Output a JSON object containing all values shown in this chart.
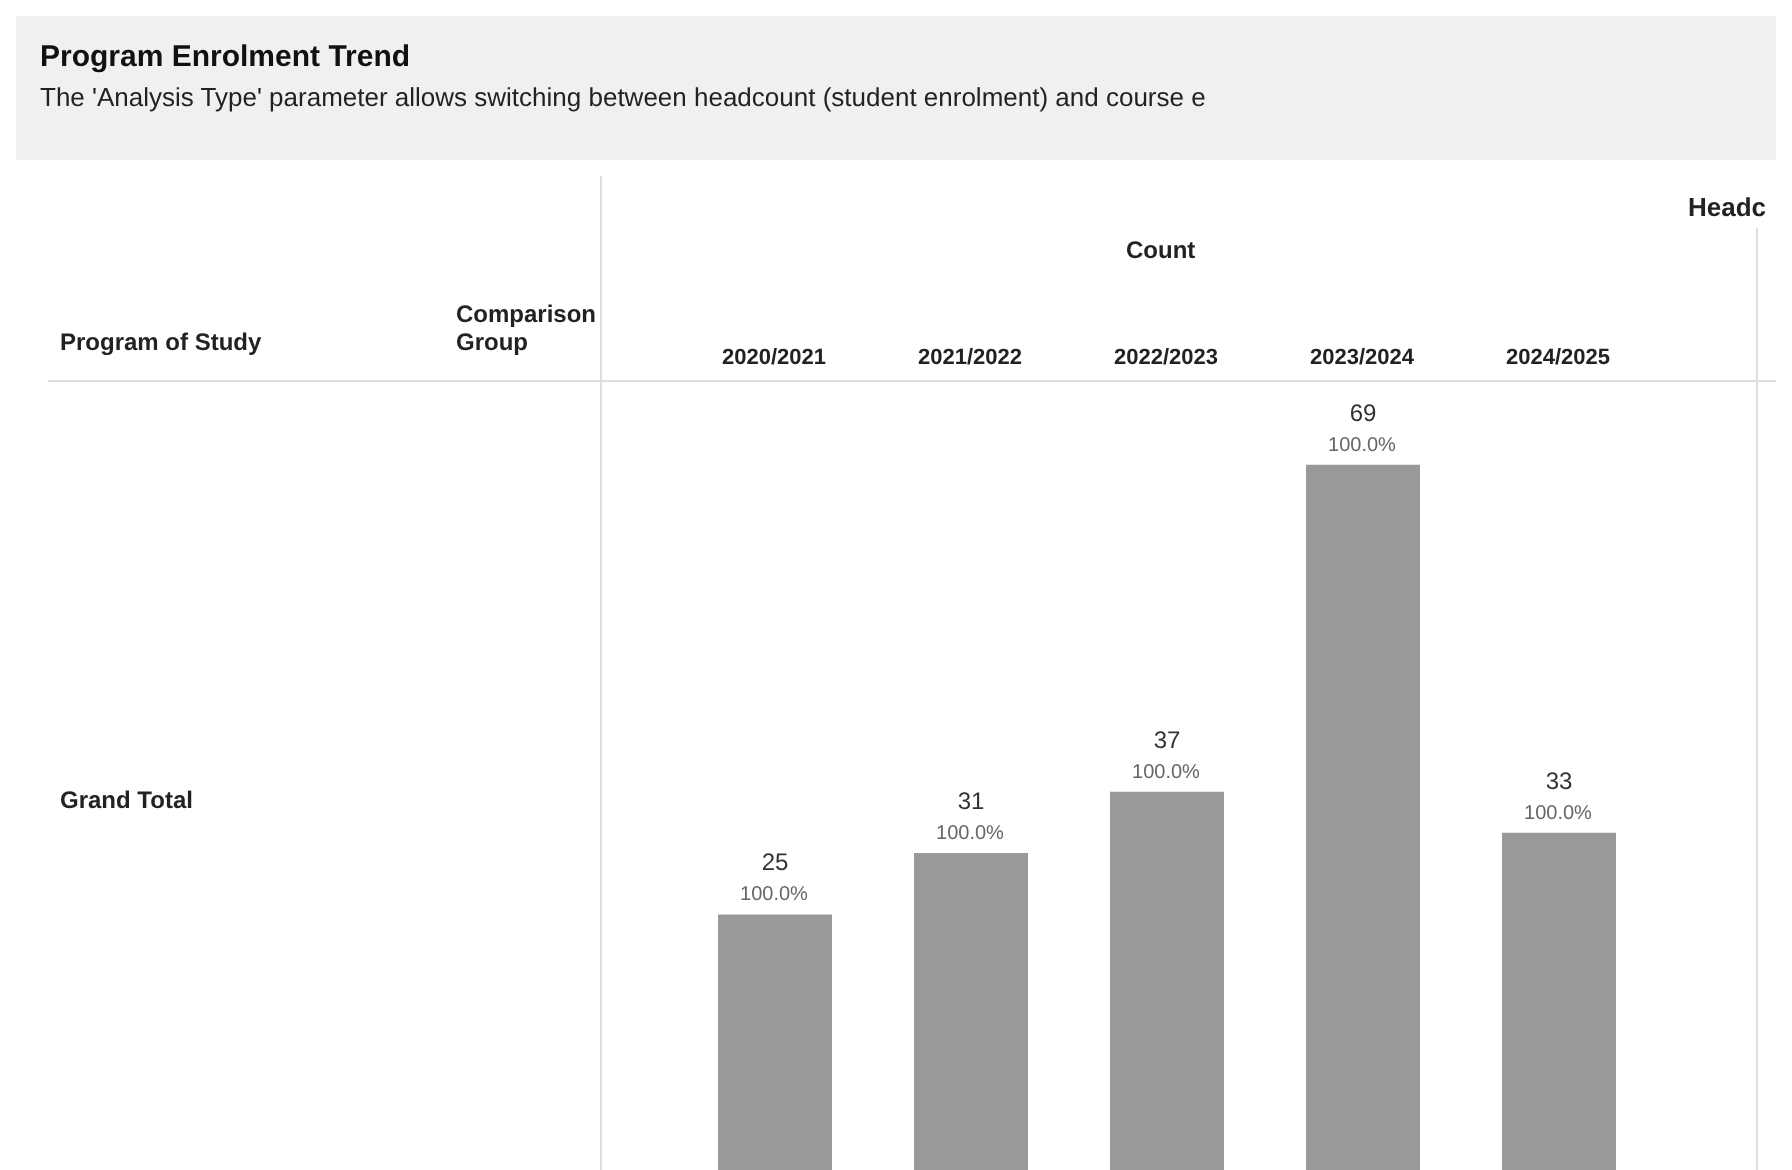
{
  "chart_data": {
    "type": "bar",
    "title": "Program Enrolment Trend",
    "subtitle": "The 'Analysis Type' parameter allows switching between headcount (student enrolment) and course e",
    "categories": [
      "2020/2021",
      "2021/2022",
      "2022/2023",
      "2023/2024",
      "2024/2025"
    ],
    "values": [
      25,
      31,
      37,
      69,
      33
    ],
    "color": "#999999",
    "data_labels": true,
    "annotations": [
      "Headc",
      "Count",
      "Program of Study",
      "Comparison Group",
      "Grand Total",
      {
        "text": "100.0%",
        "x": "2020/2021",
        "y": 25
      },
      {
        "text": "100.0%",
        "x": "2021/2022",
        "y": 31
      },
      {
        "text": "100.0%",
        "x": "2022/2023",
        "y": 37
      },
      {
        "text": "100.0%",
        "x": "2023/2024",
        "y": 69
      },
      {
        "text": "100.0%",
        "x": "2024/2025",
        "y": 33
      }
    ]
  }
}
